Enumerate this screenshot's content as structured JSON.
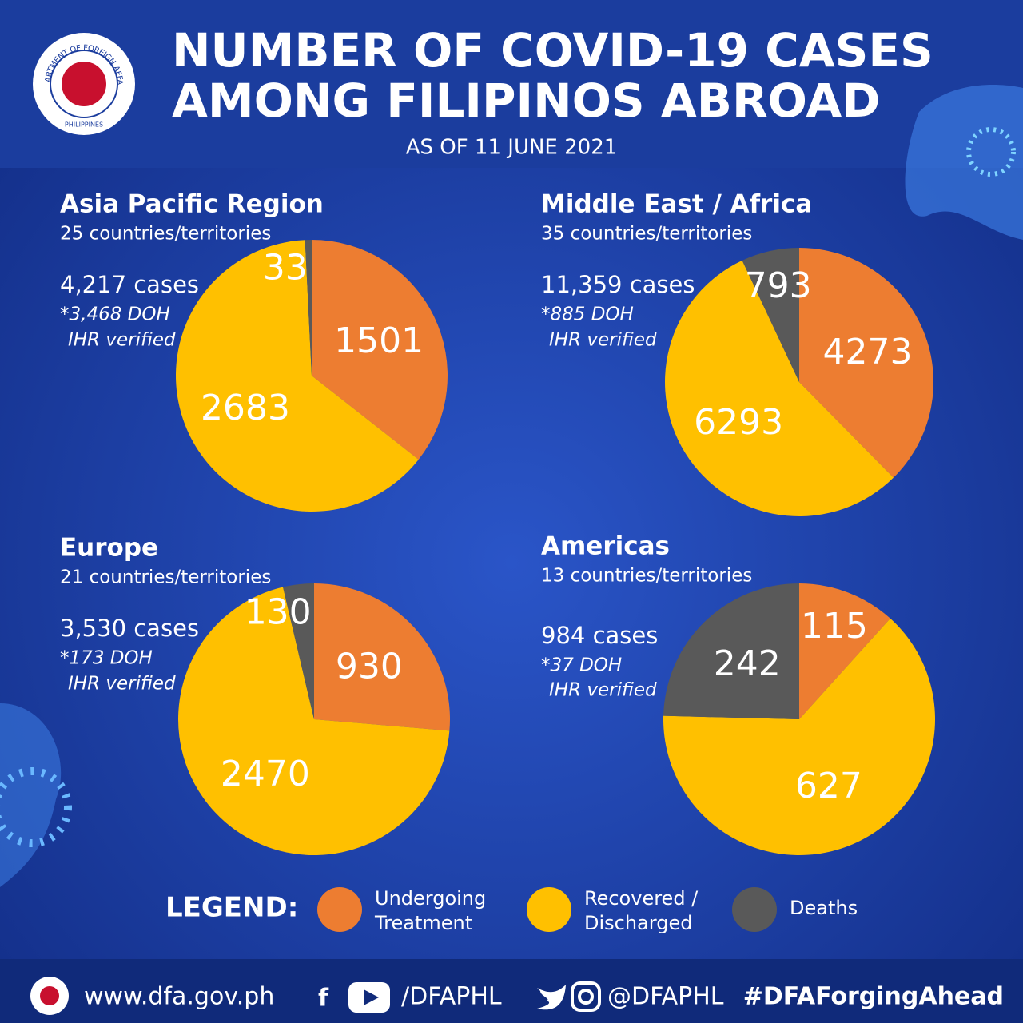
{
  "header": {
    "title": [
      "NUMBER OF  COVID-19 CASES",
      "AMONG FILIPINOS ABROAD"
    ],
    "date": "AS OF 11 JUNE 2021",
    "logo": {
      "ring": "DEPARTMENT OF FOREIGN AFFAIRS",
      "bottom": "PHILIPPINES"
    }
  },
  "chart_data": [
    {
      "type": "pie",
      "title": "Asia Pacific Region",
      "subtitle": "25 countries/territories",
      "annotations": [
        "4,217 cases",
        "*3,468 DOH",
        "IHR verified"
      ],
      "values": [
        1501,
        2683,
        33
      ],
      "colors": [
        "#ed7d31",
        "#ffc000",
        "#595959"
      ]
    },
    {
      "type": "pie",
      "title": "Middle East / Africa",
      "subtitle": "35 countries/territories",
      "annotations": [
        "11,359 cases",
        "*885 DOH",
        "IHR verified"
      ],
      "values": [
        4273,
        6293,
        793
      ],
      "colors": [
        "#ed7d31",
        "#ffc000",
        "#595959"
      ]
    },
    {
      "type": "pie",
      "title": "Europe",
      "subtitle": "21 countries/territories",
      "annotations": [
        "3,530 cases",
        "*173 DOH",
        "IHR verified"
      ],
      "values": [
        930,
        2470,
        130
      ],
      "colors": [
        "#ed7d31",
        "#ffc000",
        "#595959"
      ]
    },
    {
      "type": "pie",
      "title": "Americas",
      "subtitle": "13 countries/territories",
      "annotations": [
        "984 cases",
        "*37 DOH",
        "IHR verified"
      ],
      "values": [
        115,
        627,
        242
      ],
      "colors": [
        "#ed7d31",
        "#ffc000",
        "#595959"
      ]
    }
  ],
  "legend": {
    "title": "LEGEND:",
    "items": [
      [
        "Undergoing",
        "Treatment"
      ],
      [
        "Recovered /",
        "Discharged"
      ],
      [
        "Deaths"
      ]
    ]
  },
  "footer": {
    "website": "www.dfa.gov.ph",
    "facebook_youtube": "/DFAPHL",
    "twitter_instagram": "@DFAPHL",
    "hashtag": "#DFAForgingAhead"
  }
}
